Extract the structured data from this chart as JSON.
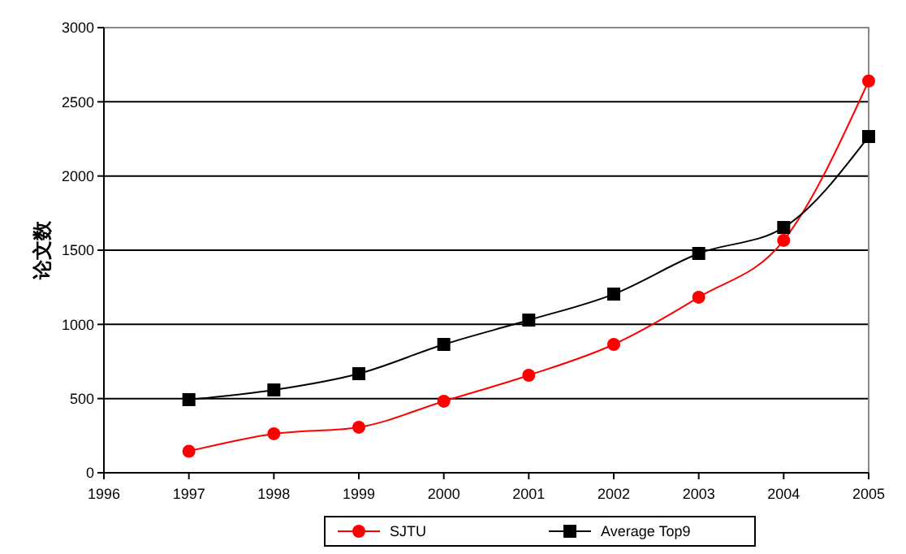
{
  "chart_data": {
    "type": "line",
    "ylabel": "论文数",
    "x": [
      1997,
      1998,
      1999,
      2000,
      2001,
      2002,
      2003,
      2004,
      2005
    ],
    "xlim": [
      1996,
      2005
    ],
    "xticks": [
      1996,
      1997,
      1998,
      1999,
      2000,
      2001,
      2002,
      2003,
      2004,
      2005
    ],
    "ylim": [
      0,
      3000
    ],
    "yticks": [
      0,
      500,
      1000,
      1500,
      2000,
      2500,
      3000
    ],
    "grid": "y",
    "legend": "bottom",
    "series": [
      {
        "name": "SJTU",
        "color": "#ff0000",
        "marker": "circle",
        "values": [
          145,
          263,
          307,
          482,
          657,
          865,
          1183,
          1566,
          2640
        ]
      },
      {
        "name": "Average Top9",
        "color": "#000000",
        "marker": "square",
        "values": [
          493,
          558,
          668,
          865,
          1029,
          1204,
          1478,
          1653,
          2266
        ]
      }
    ]
  }
}
